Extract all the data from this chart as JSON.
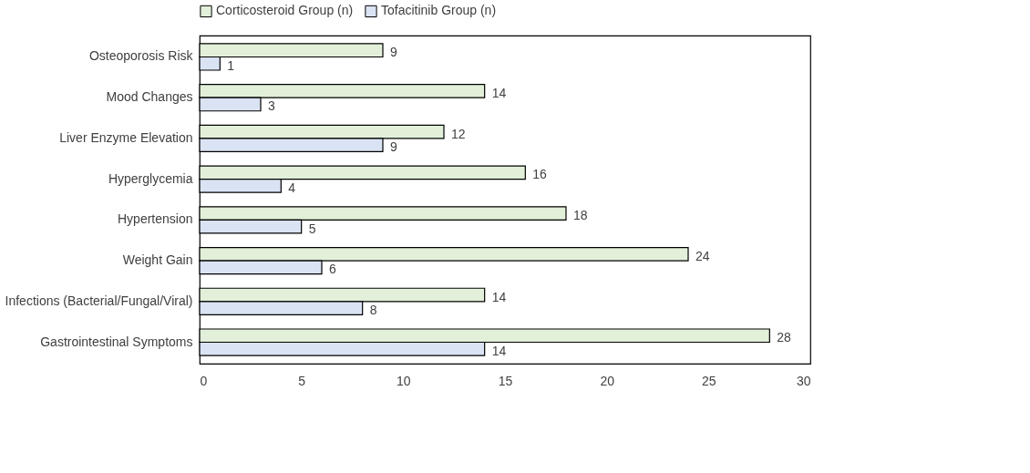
{
  "chart_data": {
    "type": "bar",
    "orientation": "horizontal",
    "categories": [
      "Osteoporosis Risk",
      "Mood Changes",
      "Liver Enzyme Elevation",
      "Hyperglycemia",
      "Hypertension",
      "Weight Gain",
      "Infections (Bacterial/Fungal/Viral)",
      "Gastrointestinal Symptoms"
    ],
    "series": [
      {
        "name": "Corticosteroid Group (n)",
        "color": "#e2f0d9",
        "values": [
          9,
          14,
          12,
          16,
          18,
          24,
          14,
          28
        ]
      },
      {
        "name": "Tofacitinib Group (n)",
        "color": "#dae3f3",
        "values": [
          1,
          3,
          9,
          4,
          5,
          6,
          8,
          14
        ]
      }
    ],
    "xlim": [
      0,
      30
    ],
    "xticks": [
      0,
      5,
      10,
      15,
      20,
      25,
      30
    ],
    "grid": false,
    "legend": "top",
    "data_labels": true
  }
}
